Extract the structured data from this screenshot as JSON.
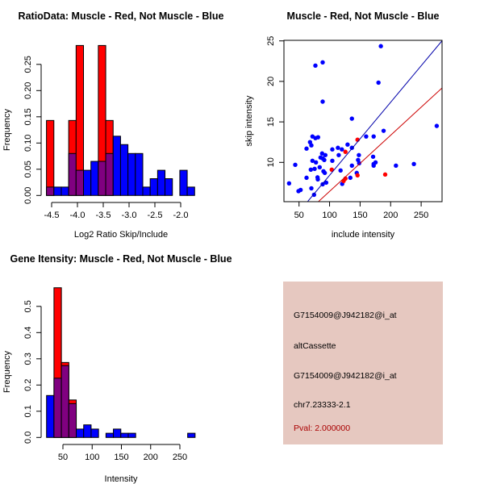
{
  "colors": {
    "muscle": "#ff0000",
    "not_muscle": "#0000ff",
    "overlap": "#800080",
    "red_line": "#cc0000",
    "blue_line": "#0000aa",
    "panel_bg": "#e6c8c0",
    "pval": "#aa0000"
  },
  "chart_data": [
    {
      "type": "bar",
      "title": "RatioData: Muscle - Red, Not Muscle - Blue",
      "xlabel": "Log2 Ratio Skip/Include",
      "ylabel": "Frequency",
      "bin_start": -4.6,
      "bin_width": 0.1435,
      "xticks": [
        -4.5,
        -4.0,
        -3.5,
        -3.0,
        -2.5,
        -2.0
      ],
      "xtick_labels": [
        "-4.5",
        "-4.0",
        "-3.5",
        "-3.0",
        "-2.5",
        "-2.0"
      ],
      "yticks": [
        0,
        0.05,
        0.1,
        0.15,
        0.2,
        0.25
      ],
      "ytick_labels": [
        "0.00",
        "0.05",
        "0.10",
        "0.15",
        "0.20",
        "0.25"
      ],
      "series": [
        {
          "name": "Muscle",
          "color": "red",
          "values": [
            0.143,
            0,
            0,
            0.143,
            0.286,
            0,
            0,
            0.286,
            0.143,
            0,
            0,
            0,
            0,
            0,
            0,
            0,
            0,
            0,
            0,
            0
          ]
        },
        {
          "name": "Not Muscle",
          "color": "blue",
          "values": [
            0.016,
            0.016,
            0.016,
            0.08,
            0.048,
            0.048,
            0.065,
            0.065,
            0.08,
            0.113,
            0.097,
            0.08,
            0.08,
            0.016,
            0.032,
            0.048,
            0.032,
            0,
            0.048,
            0.016
          ]
        }
      ]
    },
    {
      "type": "scatter",
      "title": "Muscle - Red, Not Muscle - Blue",
      "xlabel": "include intensity",
      "ylabel": "skip intensity",
      "xlim": [
        25.3,
        284
      ],
      "ylim": [
        5.15,
        25.07
      ],
      "xticks": [
        50,
        100,
        150,
        200,
        250
      ],
      "xtick_labels": [
        "50",
        "100",
        "150",
        "200",
        "250"
      ],
      "yticks": [
        10,
        15,
        20,
        25
      ],
      "ytick_labels": [
        "10",
        "15",
        "20",
        "25"
      ],
      "lines": [
        {
          "name": "Not Muscle fit",
          "color": "blue",
          "slope": 0.0902,
          "intercept": -0.62
        },
        {
          "name": "Muscle fit",
          "color": "red",
          "slope": 0.0693,
          "intercept": -0.51
        }
      ],
      "series": [
        {
          "name": "Not Muscle",
          "color": "blue",
          "points": [
            [
              33.7,
              7.41
            ],
            [
              43.8,
              9.7
            ],
            [
              49.1,
              6.45
            ],
            [
              52.6,
              6.6
            ],
            [
              62.3,
              8.1
            ],
            [
              62.3,
              11.7
            ],
            [
              68,
              12.5
            ],
            [
              70.2,
              12.1
            ],
            [
              72,
              13.2
            ],
            [
              72,
              10.2
            ],
            [
              70.2,
              6.8
            ],
            [
              74.6,
              6.0
            ],
            [
              69.3,
              9.1
            ],
            [
              75.5,
              9.2
            ],
            [
              76.8,
              21.95
            ],
            [
              76.8,
              13.0
            ],
            [
              81.2,
              13.1
            ],
            [
              77.7,
              10.0
            ],
            [
              80.3,
              8.15
            ],
            [
              80.8,
              7.9
            ],
            [
              83.8,
              9.4
            ],
            [
              85.2,
              10.6
            ],
            [
              87.8,
              11.1
            ],
            [
              88.7,
              22.35
            ],
            [
              88.7,
              17.5
            ],
            [
              88.7,
              10.5
            ],
            [
              90,
              8.9
            ],
            [
              91.3,
              10.3
            ],
            [
              92.2,
              8.7
            ],
            [
              93.1,
              10.9
            ],
            [
              88.7,
              7.3
            ],
            [
              94.5,
              7.5
            ],
            [
              104.5,
              11.6
            ],
            [
              104.5,
              10.2
            ],
            [
              113.7,
              11.8
            ],
            [
              115,
              10.9
            ],
            [
              118,
              9.0
            ],
            [
              120.2,
              11.6
            ],
            [
              120.7,
              7.35
            ],
            [
              129.5,
              12.2
            ],
            [
              134,
              8.1
            ],
            [
              136.6,
              15.4
            ],
            [
              136.6,
              11.8
            ],
            [
              136.6,
              9.6
            ],
            [
              144.5,
              8.7
            ],
            [
              146.7,
              10.3
            ],
            [
              148,
              10.9
            ],
            [
              148.5,
              9.9
            ],
            [
              159.9,
              13.2
            ],
            [
              171.3,
              10.7
            ],
            [
              172.2,
              13.2
            ],
            [
              172.2,
              9.8
            ],
            [
              172.2,
              9.6
            ],
            [
              175.3,
              10.0
            ],
            [
              180.1,
              19.85
            ],
            [
              184,
              24.35
            ],
            [
              188.5,
              13.9
            ],
            [
              208.7,
              9.6
            ],
            [
              238.1,
              9.8
            ],
            [
              275.5,
              14.5
            ]
          ]
        },
        {
          "name": "Muscle",
          "color": "red",
          "points": [
            [
              103.6,
              9.1
            ],
            [
              126,
              11.3
            ],
            [
              123,
              7.7
            ],
            [
              126,
              8.0
            ],
            [
              145.8,
              12.8
            ],
            [
              145.8,
              8.4
            ],
            [
              191.1,
              8.5
            ]
          ]
        }
      ]
    },
    {
      "type": "bar",
      "title": "Gene Itensity: Muscle - Red, Not Muscle - Blue",
      "xlabel": "Intensity",
      "ylabel": "Frequency",
      "bin_start": 22,
      "bin_width": 12.7,
      "xticks": [
        50,
        100,
        150,
        200,
        250
      ],
      "xtick_labels": [
        "50",
        "100",
        "150",
        "200",
        "250"
      ],
      "yticks": [
        0,
        0.1,
        0.2,
        0.3,
        0.4,
        0.5
      ],
      "ytick_labels": [
        "0.0",
        "0.1",
        "0.2",
        "0.3",
        "0.4",
        "0.5"
      ],
      "series": [
        {
          "name": "Muscle",
          "color": "red",
          "values": [
            0,
            0.571,
            0.286,
            0.143,
            0,
            0,
            0,
            0,
            0,
            0,
            0,
            0,
            0,
            0,
            0,
            0,
            0,
            0,
            0,
            0
          ]
        },
        {
          "name": "Not Muscle",
          "color": "blue",
          "values": [
            0.16,
            0.226,
            0.274,
            0.129,
            0.032,
            0.048,
            0.032,
            0,
            0.016,
            0.032,
            0.016,
            0.016,
            0,
            0,
            0,
            0,
            0,
            0,
            0,
            0.016
          ]
        }
      ]
    }
  ],
  "info_panel": {
    "probe_id": "G7154009@J942182@i_at",
    "event_type": "altCassette",
    "probe_id_2": "G7154009@J942182@i_at",
    "location": "chr7.23333-2.1",
    "pval": "Pval: 2.000000"
  }
}
